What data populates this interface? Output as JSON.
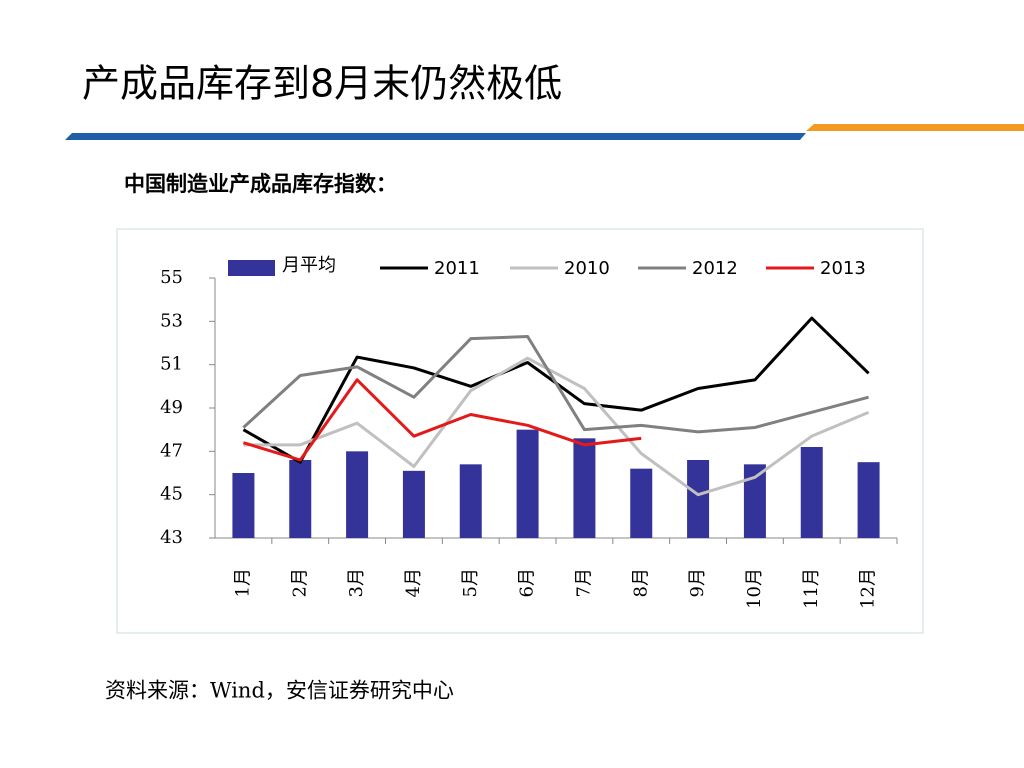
{
  "title": "产成品库存到8月末仍然极低",
  "subtitle": "中国制造业产成品库存指数：",
  "source": "资料来源：Wind，安信证券研究中心",
  "chart_data": {
    "type": "bar",
    "categories": [
      "1月",
      "2月",
      "3月",
      "4月",
      "5月",
      "6月",
      "7月",
      "8月",
      "9月",
      "10月",
      "11月",
      "12月"
    ],
    "series": [
      {
        "name": "月平均",
        "type": "bar",
        "color": "#333399",
        "values": [
          46.0,
          46.6,
          47.0,
          46.1,
          46.4,
          48.0,
          47.6,
          46.2,
          46.6,
          46.4,
          47.2,
          46.5
        ]
      },
      {
        "name": "2011",
        "type": "line",
        "color": "#000000",
        "values": [
          48.0,
          46.5,
          51.35,
          50.85,
          50.0,
          51.1,
          49.2,
          48.9,
          49.9,
          50.3,
          53.15,
          50.6
        ]
      },
      {
        "name": "2010",
        "type": "line",
        "color": "#c0c0c0",
        "values": [
          47.3,
          47.3,
          48.3,
          46.3,
          49.8,
          51.3,
          49.9,
          46.9,
          45.0,
          45.8,
          47.7,
          48.8
        ]
      },
      {
        "name": "2012",
        "type": "line",
        "color": "#808080",
        "values": [
          48.1,
          50.5,
          50.9,
          49.5,
          52.2,
          52.3,
          48.0,
          48.2,
          47.9,
          48.1,
          48.8,
          49.5
        ]
      },
      {
        "name": "2013",
        "type": "line",
        "color": "#e41a1a",
        "values": [
          47.4,
          46.6,
          50.3,
          47.7,
          48.7,
          48.2,
          47.3,
          47.6,
          null,
          null,
          null,
          null
        ]
      }
    ],
    "ylim": [
      43,
      55
    ],
    "yticks": [
      43,
      45,
      47,
      49,
      51,
      53,
      55
    ]
  }
}
